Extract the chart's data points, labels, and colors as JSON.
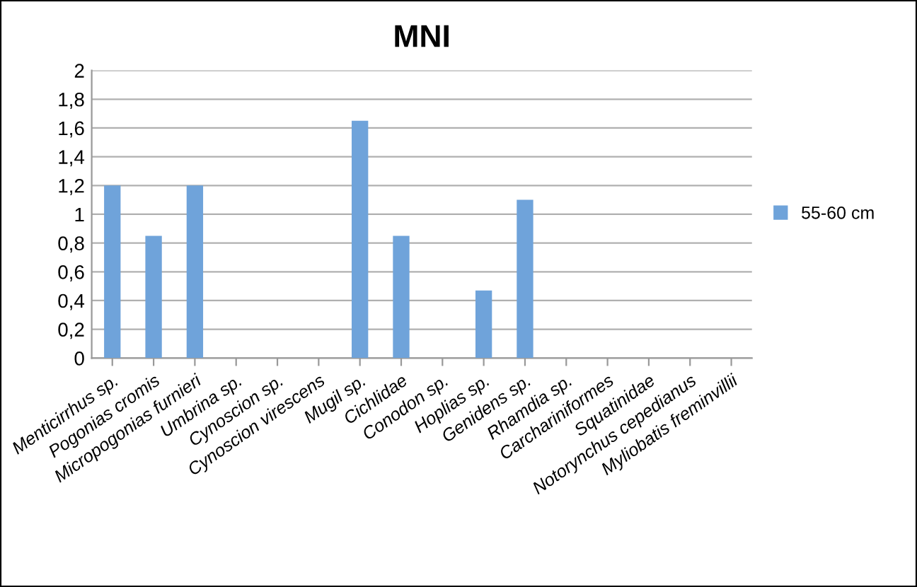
{
  "chart_data": {
    "type": "bar",
    "title": "MNI",
    "categories": [
      "Menticirrhus sp.",
      "Pogonias cromis",
      "Micropogonias furnieri",
      "Umbrina sp.",
      "Cynoscion sp.",
      "Cynoscion virescens",
      "Mugil sp.",
      "Cichlidae",
      "Conodon sp.",
      "Hoplias sp.",
      "Genidens sp.",
      "Rhamdia sp.",
      "Carchariniformes",
      "Squatinidae",
      "Notorynchus cepedianus",
      "Myliobatis freminvillii"
    ],
    "series": [
      {
        "name": "55-60 cm",
        "color": "#6fa3da",
        "values": [
          1.2,
          0.85,
          1.2,
          0,
          0,
          0,
          1.65,
          0.85,
          0,
          0.47,
          1.1,
          0,
          0,
          0,
          0,
          0
        ]
      }
    ],
    "ylim": [
      0,
      2
    ],
    "yticks": [
      0,
      {
        "value": 0.2,
        "label": "0,2"
      },
      {
        "value": 0.4,
        "label": "0,4"
      },
      {
        "value": 0.6,
        "label": "0,6"
      },
      {
        "value": 0.8,
        "label": "0,8"
      },
      1,
      {
        "value": 1.2,
        "label": "1,2"
      },
      {
        "value": 1.4,
        "label": "1,4"
      },
      {
        "value": 1.6,
        "label": "1,6"
      },
      {
        "value": 1.8,
        "label": "1,8"
      },
      2
    ],
    "grid": "y",
    "legend": "right"
  }
}
